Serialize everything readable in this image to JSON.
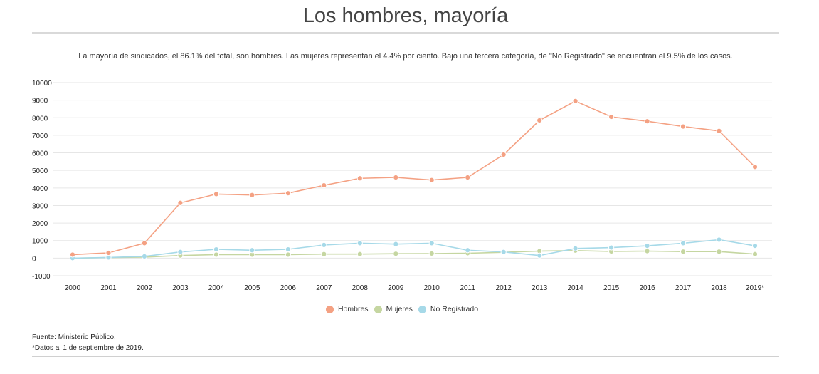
{
  "title": "Los hombres, mayoría",
  "subtitle": "La mayoría de sindicados, el 86.1% del total, son hombres. Las mujeres representan el 4.4% por ciento. Bajo una tercera categoría, de \"No Registrado\" se encuentran el 9.5% de los casos.",
  "source_line1": "Fuente: Ministerio Público.",
  "source_line2": "*Datos al 1 de septiembre de 2019.",
  "chart_data": {
    "type": "line",
    "x": [
      "2000",
      "2001",
      "2002",
      "2003",
      "2004",
      "2005",
      "2006",
      "2007",
      "2008",
      "2009",
      "2010",
      "2011",
      "2012",
      "2013",
      "2014",
      "2015",
      "2016",
      "2017",
      "2018",
      "2019*"
    ],
    "ylim": [
      -1000,
      10000
    ],
    "yticks": [
      -1000,
      0,
      1000,
      2000,
      3000,
      4000,
      5000,
      6000,
      7000,
      8000,
      9000,
      10000
    ],
    "grid": true,
    "legend_position": "bottom",
    "series": [
      {
        "name": "Hombres",
        "color": "#f4a183",
        "values": [
          200,
          300,
          850,
          3150,
          3650,
          3600,
          3700,
          4150,
          4550,
          4600,
          4450,
          4600,
          5900,
          7850,
          8950,
          8050,
          7800,
          7500,
          7250,
          5200
        ]
      },
      {
        "name": "Mujeres",
        "color": "#c5d6a1",
        "values": [
          0,
          30,
          60,
          150,
          200,
          200,
          200,
          230,
          230,
          250,
          260,
          280,
          330,
          400,
          430,
          380,
          400,
          370,
          370,
          230
        ]
      },
      {
        "name": "No Registrado",
        "color": "#a6d9e8",
        "values": [
          0,
          40,
          100,
          350,
          500,
          450,
          500,
          750,
          850,
          800,
          850,
          450,
          350,
          150,
          550,
          600,
          700,
          850,
          1050,
          700
        ]
      }
    ]
  }
}
